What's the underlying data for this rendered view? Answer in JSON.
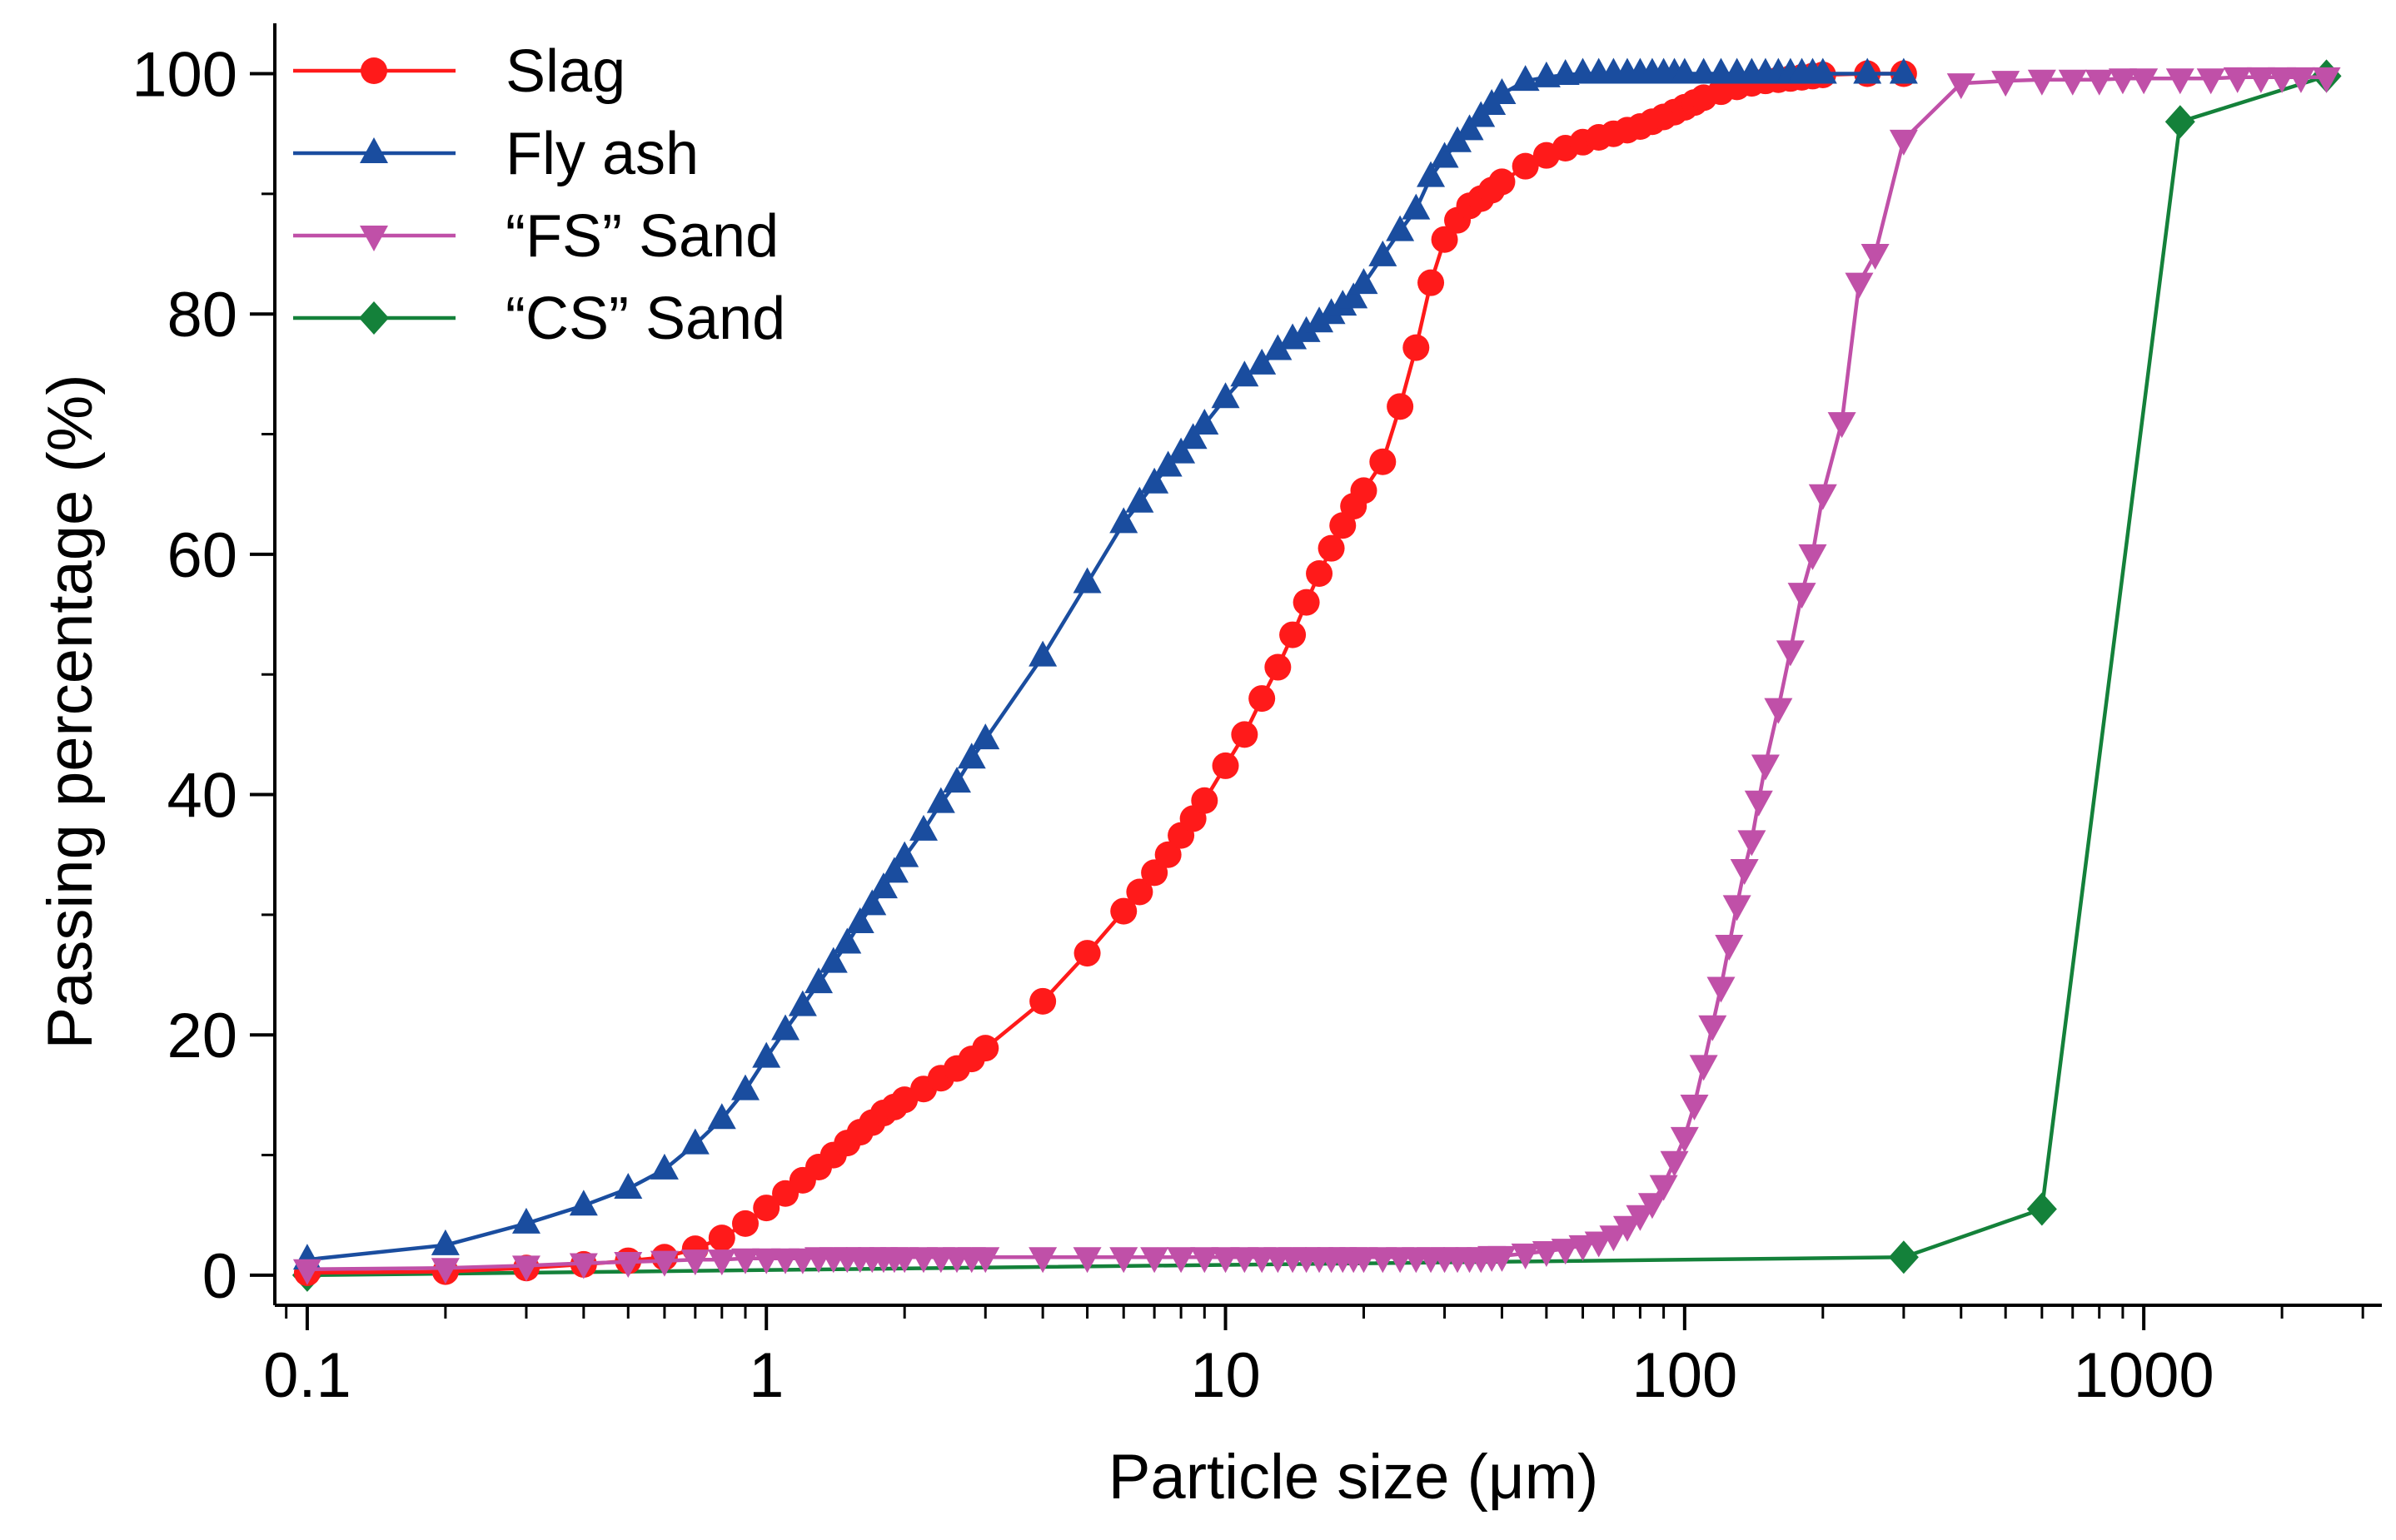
{
  "chart_data": {
    "type": "line",
    "xlabel": "Particle size (μm)",
    "ylabel": "Passing percentage (%)",
    "x_scale": "log",
    "xlim": [
      0.085,
      3300
    ],
    "ylim": [
      -2.5,
      103.5
    ],
    "x_ticks": [
      {
        "value": 0.1,
        "label": "0.1"
      },
      {
        "value": 1,
        "label": "1"
      },
      {
        "value": 10,
        "label": "10"
      },
      {
        "value": 100,
        "label": "100"
      },
      {
        "value": 1000,
        "label": "1000"
      }
    ],
    "y_ticks": [
      {
        "value": 0,
        "label": "0"
      },
      {
        "value": 20,
        "label": "20"
      },
      {
        "value": 40,
        "label": "40"
      },
      {
        "value": 60,
        "label": "60"
      },
      {
        "value": 80,
        "label": "80"
      },
      {
        "value": 100,
        "label": "100"
      }
    ],
    "grid": false,
    "legend": "top-left",
    "series": [
      {
        "name": "Slag",
        "color": "#ff1a1a",
        "marker": "circle",
        "x": [
          0.1,
          0.2,
          0.3,
          0.4,
          0.5,
          0.6,
          0.7,
          0.8,
          0.9,
          1.0,
          1.1,
          1.2,
          1.3,
          1.4,
          1.5,
          1.6,
          1.7,
          1.8,
          1.9,
          2.0,
          2.2,
          2.4,
          2.6,
          2.8,
          3.0,
          4.0,
          5.0,
          6.0,
          6.5,
          7.0,
          7.5,
          8.0,
          8.5,
          9.0,
          10,
          11,
          12,
          13,
          14,
          15,
          16,
          17,
          18,
          19,
          20,
          22,
          24,
          26,
          28,
          30,
          32,
          34,
          36,
          38,
          40,
          45,
          50,
          55,
          60,
          65,
          70,
          75,
          80,
          85,
          90,
          95,
          100,
          105,
          110,
          120,
          130,
          140,
          150,
          160,
          170,
          180,
          190,
          200,
          250,
          300
        ],
        "y": [
          0.2,
          0.3,
          0.6,
          0.9,
          1.2,
          1.5,
          2.2,
          3.1,
          4.3,
          5.6,
          6.8,
          7.9,
          9.0,
          10.0,
          11.0,
          11.9,
          12.7,
          13.5,
          14.0,
          14.6,
          15.5,
          16.4,
          17.2,
          18.0,
          18.9,
          22.8,
          26.8,
          30.3,
          31.9,
          33.5,
          35.0,
          36.6,
          38.0,
          39.5,
          42.4,
          45.0,
          48.0,
          50.6,
          53.3,
          56.0,
          58.4,
          60.5,
          62.4,
          64.0,
          65.3,
          67.7,
          72.3,
          77.2,
          82.6,
          86.2,
          87.8,
          89.0,
          89.6,
          90.3,
          91.0,
          92.3,
          93.2,
          93.8,
          94.3,
          94.7,
          95.0,
          95.3,
          95.6,
          96.0,
          96.4,
          96.8,
          97.2,
          97.6,
          98.0,
          98.5,
          98.9,
          99.2,
          99.4,
          99.5,
          99.6,
          99.7,
          99.8,
          99.9,
          100,
          100
        ]
      },
      {
        "name": "Fly ash",
        "color": "#1a4d9f",
        "marker": "triangle-up",
        "x": [
          0.1,
          0.2,
          0.3,
          0.4,
          0.5,
          0.6,
          0.7,
          0.8,
          0.9,
          1.0,
          1.1,
          1.2,
          1.3,
          1.4,
          1.5,
          1.6,
          1.7,
          1.8,
          1.9,
          2.0,
          2.2,
          2.4,
          2.6,
          2.8,
          3.0,
          4.0,
          5.0,
          6.0,
          6.5,
          7.0,
          7.5,
          8.0,
          8.5,
          9.0,
          10,
          11,
          12,
          13,
          14,
          15,
          16,
          17,
          18,
          19,
          20,
          22,
          24,
          26,
          28,
          30,
          32,
          34,
          36,
          38,
          40,
          45,
          50,
          55,
          60,
          65,
          70,
          75,
          80,
          85,
          90,
          95,
          100,
          110,
          120,
          130,
          140,
          150,
          160,
          170,
          180,
          190,
          200,
          250,
          300
        ],
        "y": [
          1.3,
          2.5,
          4.3,
          5.8,
          7.2,
          8.8,
          10.9,
          13.0,
          15.4,
          18.1,
          20.4,
          22.4,
          24.3,
          26.0,
          27.6,
          29.3,
          30.8,
          32.2,
          33.5,
          34.8,
          37.0,
          39.3,
          41.0,
          43.0,
          44.6,
          51.5,
          57.6,
          62.6,
          64.3,
          65.9,
          67.3,
          68.4,
          69.6,
          70.8,
          73.0,
          74.8,
          75.8,
          77.0,
          77.9,
          78.5,
          79.3,
          80.0,
          80.7,
          81.3,
          82.5,
          84.8,
          86.9,
          88.7,
          91.4,
          93.0,
          94.3,
          95.3,
          96.4,
          97.4,
          98.3,
          99.4,
          99.7,
          99.9,
          100,
          100,
          100,
          100,
          100,
          100,
          100,
          100,
          100,
          100,
          100,
          100,
          100,
          100,
          100,
          100,
          100,
          100,
          100,
          100,
          100
        ]
      },
      {
        "name": "“FS” Sand",
        "color": "#c050a8",
        "marker": "triangle-down",
        "x": [
          0.1,
          0.2,
          0.3,
          0.4,
          0.5,
          0.6,
          0.7,
          0.8,
          0.9,
          1.0,
          1.1,
          1.2,
          1.3,
          1.4,
          1.5,
          1.6,
          1.7,
          1.8,
          1.9,
          2.0,
          2.2,
          2.4,
          2.6,
          2.8,
          3.0,
          4.0,
          5.0,
          6.0,
          7.0,
          8.0,
          9.0,
          10,
          11,
          12,
          13,
          14,
          15,
          16,
          17,
          18,
          19,
          20,
          22,
          24,
          26,
          28,
          30,
          32,
          34,
          36,
          38,
          40,
          45,
          50,
          55,
          60,
          65,
          70,
          75,
          80,
          85,
          90,
          95,
          100,
          105,
          110,
          115,
          120,
          125,
          130,
          135,
          140,
          145,
          150,
          160,
          170,
          180,
          190,
          200,
          220,
          240,
          260,
          300,
          400,
          500,
          600,
          700,
          800,
          900,
          1000,
          1200,
          1400,
          1600,
          1800,
          2000,
          2200,
          2500
        ],
        "y": [
          0.5,
          0.6,
          0.8,
          1.0,
          1.1,
          1.2,
          1.3,
          1.3,
          1.4,
          1.4,
          1.4,
          1.4,
          1.5,
          1.5,
          1.5,
          1.5,
          1.5,
          1.5,
          1.5,
          1.5,
          1.5,
          1.5,
          1.5,
          1.5,
          1.5,
          1.5,
          1.5,
          1.5,
          1.5,
          1.5,
          1.5,
          1.5,
          1.5,
          1.5,
          1.5,
          1.5,
          1.5,
          1.5,
          1.5,
          1.5,
          1.5,
          1.5,
          1.5,
          1.5,
          1.5,
          1.5,
          1.5,
          1.5,
          1.5,
          1.5,
          1.6,
          1.6,
          1.8,
          2.0,
          2.2,
          2.5,
          2.8,
          3.3,
          4.1,
          5.0,
          6.0,
          7.5,
          9.5,
          11.5,
          14.2,
          17.5,
          20.8,
          24.0,
          27.5,
          30.8,
          33.8,
          36.2,
          39.5,
          42.5,
          47.2,
          52.0,
          56.8,
          60.0,
          65.0,
          71.0,
          82.6,
          85.0,
          94.5,
          99.2,
          99.4,
          99.5,
          99.5,
          99.5,
          99.6,
          99.6,
          99.6,
          99.6,
          99.7,
          99.7,
          99.7,
          99.7,
          99.7
        ]
      },
      {
        "name": "“CS” Sand",
        "color": "#14813a",
        "marker": "diamond",
        "x": [
          0.1,
          300,
          600,
          1200,
          2500
        ],
        "y": [
          0.0,
          1.5,
          5.5,
          96.0,
          99.8
        ]
      }
    ]
  }
}
